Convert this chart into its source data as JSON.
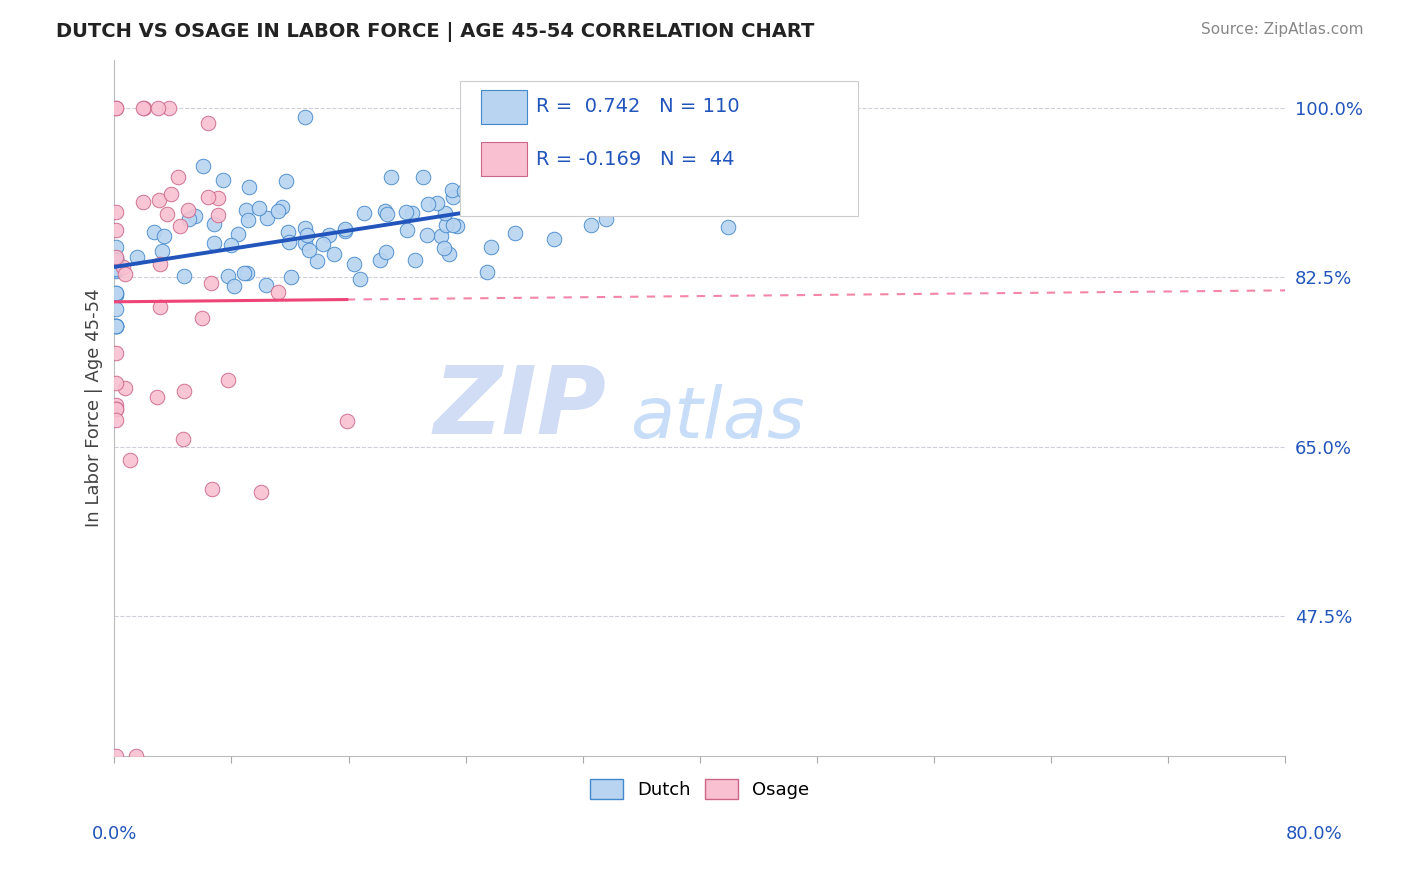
{
  "title": "DUTCH VS OSAGE IN LABOR FORCE | AGE 45-54 CORRELATION CHART",
  "source": "Source: ZipAtlas.com",
  "ylabel": "In Labor Force | Age 45-54",
  "yticks": [
    0.475,
    0.65,
    0.825,
    1.0
  ],
  "ytick_labels": [
    "47.5%",
    "65.0%",
    "82.5%",
    "100.0%"
  ],
  "xmin": 0.0,
  "xmax": 0.8,
  "ymin": 0.33,
  "ymax": 1.05,
  "dutch_R": 0.742,
  "dutch_N": 110,
  "osage_R": -0.169,
  "osage_N": 44,
  "dutch_color": "#b8d4f0",
  "dutch_edge_color": "#4488cc",
  "osage_color": "#f8c0d0",
  "osage_edge_color": "#cc6688",
  "trendline_dutch_color": "#2255bb",
  "trendline_osage_color": "#ee4477",
  "watermark_ZIP_color": "#d0ddf5",
  "watermark_atlas_color": "#c8ddf8",
  "legend_dutch_color": "#b8d4f0",
  "legend_osage_color": "#f8c0d0",
  "title_color": "#222222",
  "source_color": "#888888",
  "ylabel_color": "#444444",
  "ytick_color": "#2255bb"
}
